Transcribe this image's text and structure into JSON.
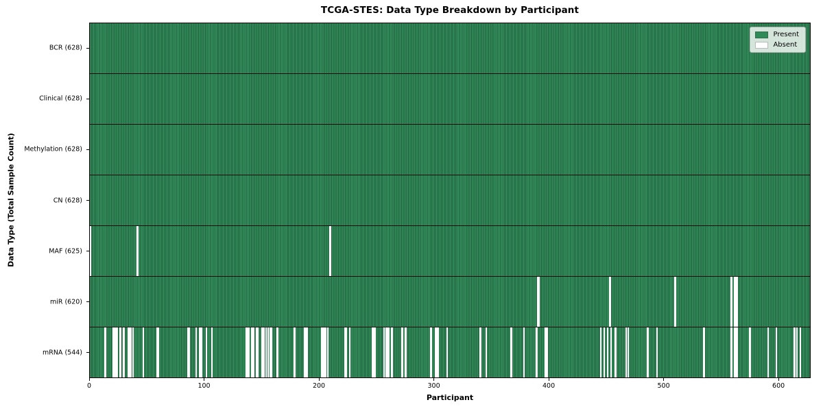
{
  "chart_data": {
    "type": "heatmap",
    "title": "TCGA-STES: Data Type Breakdown by Participant",
    "xlabel": "Participant",
    "ylabel": "Data Type (Total Sample Count)",
    "x_range": [
      0,
      628
    ],
    "n_participants": 628,
    "x_ticks": [
      0,
      100,
      200,
      300,
      400,
      500,
      600
    ],
    "grid": "off",
    "legend": {
      "position": "upper right",
      "entries": [
        {
          "label": "Present",
          "color": "#2e8b57"
        },
        {
          "label": "Absent",
          "color": "#ffffff"
        }
      ]
    },
    "colors": {
      "present": "#35905d",
      "present_edge": "#1f5c3a",
      "absent": "#ffffff",
      "row_separator": "#0d0d0d"
    },
    "rows": [
      {
        "label": "BCR (628)",
        "data_type": "BCR",
        "present_count": 628,
        "absent_participants": []
      },
      {
        "label": "Clinical (628)",
        "data_type": "Clinical",
        "present_count": 628,
        "absent_participants": []
      },
      {
        "label": "Methylation (628)",
        "data_type": "Methylation",
        "present_count": 628,
        "absent_participants": []
      },
      {
        "label": "CN (628)",
        "data_type": "CN",
        "present_count": 628,
        "absent_participants": []
      },
      {
        "label": "MAF (625)",
        "data_type": "MAF",
        "present_count": 625,
        "absent_participants": [
          0,
          41,
          209
        ]
      },
      {
        "label": "miR (620)",
        "data_type": "miR",
        "present_count": 620,
        "absent_participants": [
          390,
          391,
          453,
          510,
          559,
          562,
          563,
          564
        ]
      },
      {
        "label": "mRNA (544)",
        "data_type": "mRNA",
        "present_count": 544,
        "absent_participants": [
          13,
          20,
          22,
          23,
          26,
          29,
          33,
          34,
          35,
          37,
          46,
          58,
          59,
          85,
          86,
          92,
          95,
          96,
          97,
          101,
          106,
          136,
          138,
          141,
          142,
          145,
          146,
          150,
          151,
          153,
          155,
          157,
          158,
          163,
          178,
          187,
          188,
          189,
          202,
          203,
          205,
          207,
          222,
          223,
          226,
          246,
          248,
          256,
          258,
          260,
          263,
          272,
          275,
          297,
          301,
          303,
          311,
          340,
          345,
          367,
          378,
          389,
          397,
          398,
          445,
          448,
          451,
          454,
          458,
          467,
          469,
          486,
          494,
          535,
          559,
          562,
          563,
          564,
          575,
          591,
          598,
          614,
          616,
          619
        ]
      }
    ]
  }
}
